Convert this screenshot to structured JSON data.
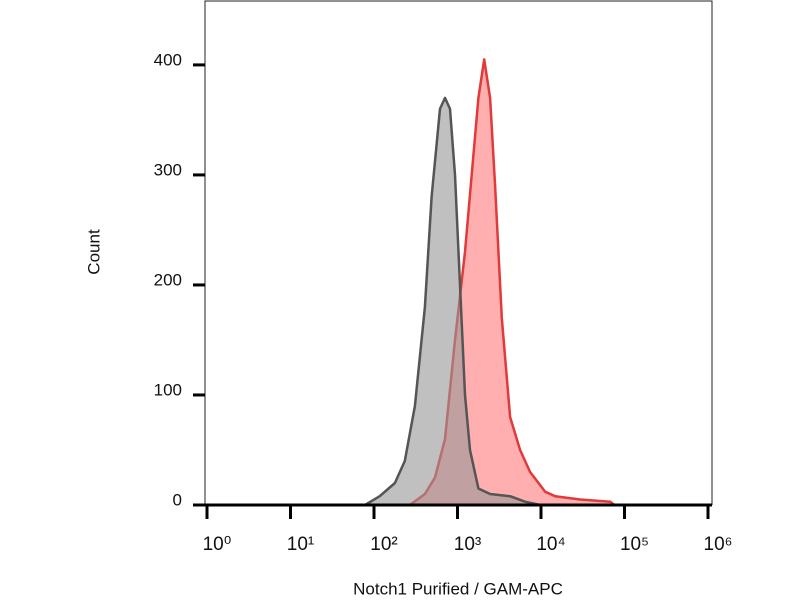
{
  "chart_data": {
    "type": "area",
    "xlabel": "Notch1 Purified / GAM-APC",
    "ylabel": "Count",
    "xscale": "log",
    "xlim": [
      1,
      1000000
    ],
    "ylim": [
      0,
      459
    ],
    "xticks": [
      {
        "value": 1,
        "label": "10⁰"
      },
      {
        "value": 10,
        "label": "10¹"
      },
      {
        "value": 100,
        "label": "10²"
      },
      {
        "value": 1000,
        "label": "10³"
      },
      {
        "value": 10000,
        "label": "10⁴"
      },
      {
        "value": 100000,
        "label": "10⁵"
      },
      {
        "value": 1000000,
        "label": "10⁶"
      }
    ],
    "yticks": [
      0,
      100,
      200,
      300,
      400
    ],
    "series": [
      {
        "color": "#e03a3a",
        "fill": "rgba(255,110,110,0.55)",
        "x": [
          1,
          269,
          407,
          537,
          708,
          933,
          1230,
          1479,
          1778,
          2089,
          2455,
          2818,
          3388,
          4266,
          5623,
          7413,
          11220,
          14791,
          29512,
          67608,
          75858,
          1000000
        ],
        "values": [
          0,
          0,
          10,
          25,
          60,
          150,
          230,
          300,
          370,
          405,
          370,
          290,
          170,
          80,
          50,
          30,
          12,
          8,
          5,
          3,
          0,
          0
        ]
      },
      {
        "color": "#555555",
        "fill": "rgba(150,150,150,0.6)",
        "x": [
          1,
          78,
          117,
          178,
          234,
          309,
          407,
          490,
          617,
          708,
          813,
          933,
          1072,
          1230,
          1413,
          1778,
          2455,
          4266,
          6457,
          9772,
          1000000
        ],
        "values": [
          0,
          0,
          8,
          20,
          40,
          90,
          180,
          280,
          360,
          370,
          360,
          300,
          200,
          100,
          50,
          15,
          10,
          8,
          3,
          0,
          0
        ]
      }
    ]
  }
}
